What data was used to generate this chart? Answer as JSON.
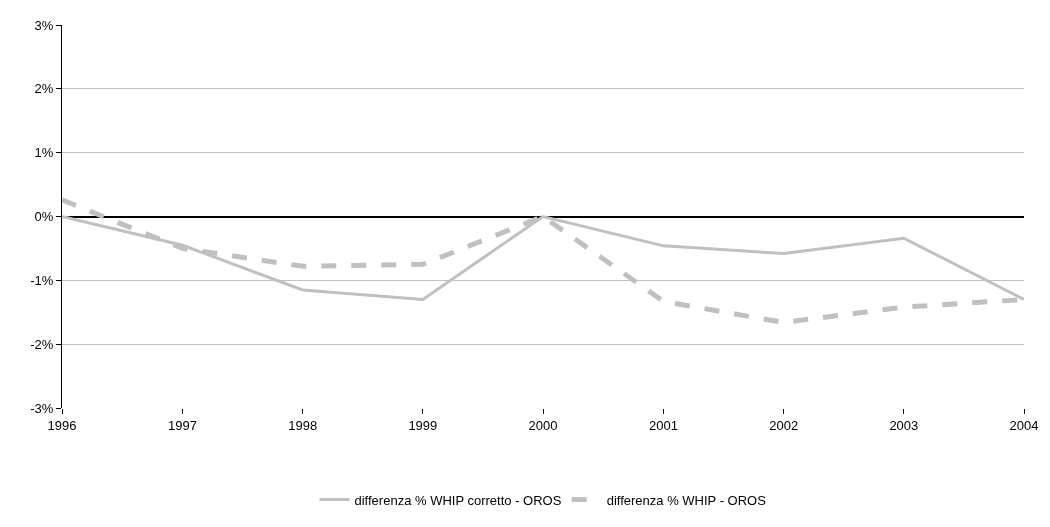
{
  "chart_data": {
    "type": "line",
    "x": [
      "1996",
      "1997",
      "1998",
      "1999",
      "2000",
      "2001",
      "2002",
      "2003",
      "2004"
    ],
    "xlim": [
      "1996",
      "2004"
    ],
    "xticks": [
      {
        "value": "1996",
        "label": "1996"
      },
      {
        "value": "1997",
        "label": "1997"
      },
      {
        "value": "1998",
        "label": "1998"
      },
      {
        "value": "1999",
        "label": "1999"
      },
      {
        "value": "2000",
        "label": "2000"
      },
      {
        "value": "2001",
        "label": "2001"
      },
      {
        "value": "2002",
        "label": "2002"
      },
      {
        "value": "2003",
        "label": "2003"
      },
      {
        "value": "2004",
        "label": "2004"
      }
    ],
    "ylim": [
      -3,
      3
    ],
    "yticks": [
      {
        "value": -3,
        "label": "-3%"
      },
      {
        "value": -2,
        "label": "-2%"
      },
      {
        "value": -1,
        "label": "-1%"
      },
      {
        "value": 0,
        "label": "0%"
      },
      {
        "value": 1,
        "label": "1%"
      },
      {
        "value": 2,
        "label": "2%"
      },
      {
        "value": 3,
        "label": "3%"
      }
    ],
    "series": [
      {
        "name": "differenza % WHIP corretto - OROS",
        "color": "#c0c0c0",
        "line_style": "solid",
        "values": [
          0,
          -0.45,
          -1.15,
          -1.3,
          0,
          -0.46,
          -0.58,
          -0.34,
          -1.3
        ]
      },
      {
        "name": "differenza % WHIP - OROS",
        "color": "#c0c0c0",
        "line_style": "dashed",
        "values": [
          0.26,
          -0.5,
          -0.78,
          -0.75,
          0,
          -1.33,
          -1.66,
          -1.42,
          -1.3
        ]
      }
    ],
    "grid": "y",
    "legend": "bottom",
    "marker": "none"
  }
}
